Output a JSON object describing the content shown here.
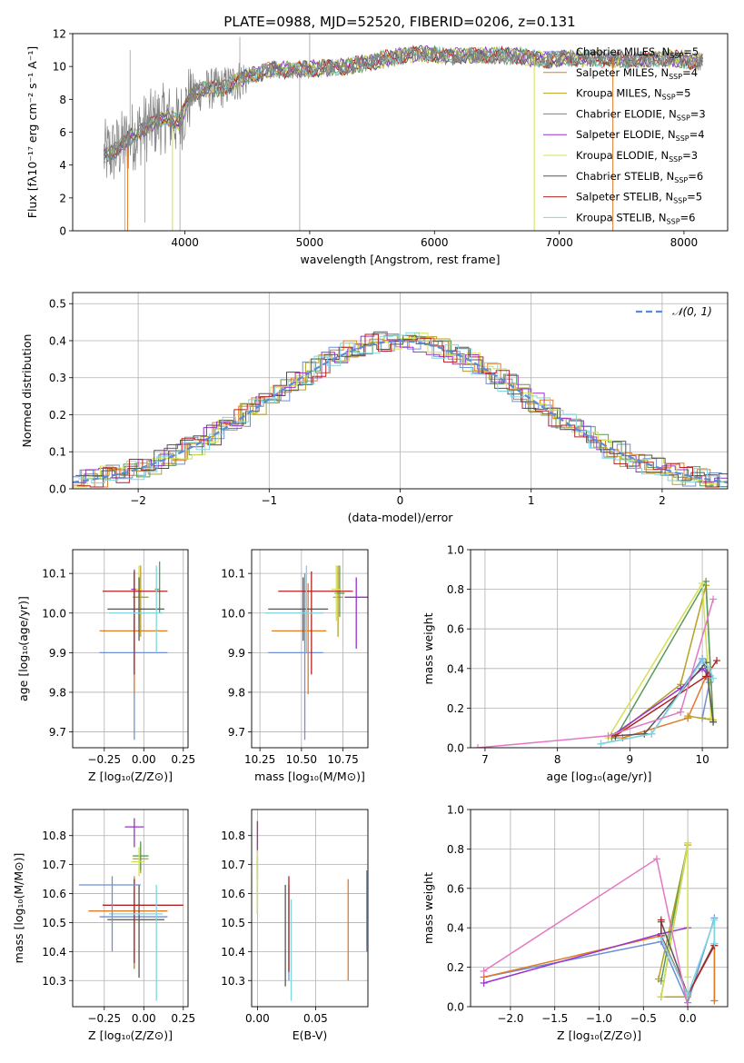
{
  "title": "PLATE=0988, MJD=52520, FIBERID=0206, z=0.131",
  "models": [
    {
      "label": "Chabrier MILES, N",
      "nssp": "=5",
      "color": "#6f8fd6"
    },
    {
      "label": "Salpeter MILES, N",
      "nssp": "=4",
      "color": "#e07b28"
    },
    {
      "label": "Kroupa MILES, N",
      "nssp": "=5",
      "color": "#b8a020"
    },
    {
      "label": "Chabrier ELODIE, N",
      "nssp": "=3",
      "color": "#5a9a5a"
    },
    {
      "label": "Salpeter ELODIE, N",
      "nssp": "=4",
      "color": "#9932cc"
    },
    {
      "label": "Kroupa ELODIE, N",
      "nssp": "=3",
      "color": "#d4e050"
    },
    {
      "label": "Chabrier STELIB, N",
      "nssp": "=6",
      "color": "#555555"
    },
    {
      "label": "Salpeter STELIB, N",
      "nssp": "=5",
      "color": "#b22222"
    },
    {
      "label": "Kroupa STELIB, N",
      "nssp": "=6",
      "color": "#7fd6e0"
    }
  ],
  "ssp_subscript": "SSP",
  "chart_data": [
    {
      "id": "spectrum",
      "type": "line",
      "xlabel": "wavelength [Angstrom, rest frame]",
      "ylabel": "Flux [fλ10⁻¹⁷ erg cm⁻² s⁻¹ A⁻¹]",
      "xlim": [
        3100,
        8350
      ],
      "ylim": [
        0,
        12
      ],
      "xticks": [
        4000,
        5000,
        6000,
        7000,
        8000
      ],
      "yticks": [
        0,
        2,
        4,
        6,
        8,
        10,
        12
      ],
      "continuum": [
        [
          3350,
          4.6
        ],
        [
          3450,
          4.9
        ],
        [
          3550,
          5.6
        ],
        [
          3650,
          6.1
        ],
        [
          3750,
          6.6
        ],
        [
          3850,
          6.9
        ],
        [
          3950,
          6.6
        ],
        [
          4050,
          8.3
        ],
        [
          4150,
          8.6
        ],
        [
          4300,
          8.7
        ],
        [
          4500,
          9.4
        ],
        [
          4700,
          9.8
        ],
        [
          4900,
          9.8
        ],
        [
          5100,
          9.9
        ],
        [
          5300,
          10.0
        ],
        [
          5500,
          10.3
        ],
        [
          5700,
          10.6
        ],
        [
          5900,
          10.8
        ],
        [
          6100,
          10.6
        ],
        [
          6300,
          10.7
        ],
        [
          6500,
          10.7
        ],
        [
          6700,
          10.6
        ],
        [
          6900,
          10.4
        ],
        [
          7100,
          10.5
        ],
        [
          7300,
          10.5
        ],
        [
          7500,
          10.4
        ],
        [
          7700,
          10.4
        ],
        [
          7900,
          10.5
        ],
        [
          8100,
          10.3
        ]
      ]
    },
    {
      "id": "residuals",
      "type": "line",
      "xlabel": "(data-model)/error",
      "ylabel": "Normed distribution",
      "xlim": [
        -2.5,
        2.5
      ],
      "ylim": [
        0,
        0.53
      ],
      "xticks": [
        -2,
        -1,
        0,
        1,
        2
      ],
      "yticks": [
        0.0,
        0.1,
        0.2,
        0.3,
        0.4,
        0.5
      ],
      "legend": "𝒩(0, 1)",
      "gaussian": {
        "mu": 0,
        "sigma": 1
      }
    },
    {
      "id": "age-vs-Z",
      "type": "scatter",
      "xlabel": "Z [log₁₀(Z/Z⊙)]",
      "ylabel": "age  [log₁₀(age/yr)]",
      "xlim": [
        -0.45,
        0.28
      ],
      "ylim": [
        9.66,
        10.16
      ],
      "xticks": [
        -0.25,
        0.0,
        0.25
      ],
      "yticks": [
        9.7,
        9.8,
        9.9,
        10.0,
        10.1
      ],
      "points": [
        {
          "x": -0.06,
          "y": 9.9,
          "xerr": [
            0.22,
            0.21
          ],
          "yerr": [
            0.22,
            0.2
          ]
        },
        {
          "x": -0.06,
          "y": 9.955,
          "xerr": [
            0.22,
            0.21
          ],
          "yerr": [
            0.16,
            0.12
          ]
        },
        {
          "x": -0.02,
          "y": 10.04,
          "xerr": [
            0.05,
            0.05
          ],
          "yerr": [
            0.1,
            0.08
          ]
        },
        {
          "x": 0.1,
          "y": 10.06,
          "xerr": [
            0.03,
            0.0
          ],
          "yerr": [
            0.06,
            0.07
          ]
        },
        {
          "x": -0.06,
          "y": 10.06,
          "xerr": [
            0.02,
            0.02
          ],
          "yerr": [
            0.15,
            0.05
          ]
        },
        {
          "x": -0.03,
          "y": 10.06,
          "xerr": [
            0.02,
            0.02
          ],
          "yerr": [
            0.08,
            0.06
          ]
        },
        {
          "x": -0.03,
          "y": 10.01,
          "xerr": [
            0.2,
            0.16
          ],
          "yerr": [
            0.08,
            0.08
          ]
        },
        {
          "x": -0.06,
          "y": 10.055,
          "xerr": [
            0.2,
            0.21
          ],
          "yerr": [
            0.21,
            0.05
          ]
        },
        {
          "x": 0.08,
          "y": 10.0,
          "xerr": [
            0.3,
            0.04
          ],
          "yerr": [
            0.1,
            0.12
          ]
        }
      ]
    },
    {
      "id": "age-vs-mass",
      "type": "scatter",
      "xlabel": "mass [log₁₀(M/M⊙)]",
      "ylabel": "",
      "xlim": [
        10.2,
        10.9
      ],
      "ylim": [
        9.66,
        10.16
      ],
      "xticks": [
        10.25,
        10.5,
        10.75
      ],
      "yticks": [
        9.7,
        9.8,
        9.9,
        10.0,
        10.1
      ],
      "points": [
        {
          "x": 10.52,
          "y": 9.9,
          "xerr": [
            0.22,
            0.11
          ],
          "yerr": [
            0.22,
            0.2
          ]
        },
        {
          "x": 10.54,
          "y": 9.955,
          "xerr": [
            0.22,
            0.11
          ],
          "yerr": [
            0.16,
            0.12
          ]
        },
        {
          "x": 10.72,
          "y": 10.04,
          "xerr": [
            0.03,
            0.03
          ],
          "yerr": [
            0.1,
            0.08
          ]
        },
        {
          "x": 10.73,
          "y": 10.05,
          "xerr": [
            0.03,
            0.03
          ],
          "yerr": [
            0.06,
            0.07
          ]
        },
        {
          "x": 10.83,
          "y": 10.04,
          "xerr": [
            0.07,
            0.07
          ],
          "yerr": [
            0.13,
            0.05
          ]
        },
        {
          "x": 10.71,
          "y": 10.06,
          "xerr": [
            0.03,
            0.03
          ],
          "yerr": [
            0.08,
            0.06
          ]
        },
        {
          "x": 10.51,
          "y": 10.01,
          "xerr": [
            0.21,
            0.15
          ],
          "yerr": [
            0.08,
            0.08
          ]
        },
        {
          "x": 10.56,
          "y": 10.055,
          "xerr": [
            0.2,
            0.25
          ],
          "yerr": [
            0.21,
            0.05
          ]
        },
        {
          "x": 10.53,
          "y": 10.0,
          "xerr": [
            0.25,
            0.1
          ],
          "yerr": [
            0.1,
            0.12
          ]
        }
      ]
    },
    {
      "id": "weight-vs-age",
      "type": "line",
      "xlabel": "age  [log₁₀(age/yr)]",
      "ylabel": "mass weight",
      "xlim": [
        6.8,
        10.35
      ],
      "ylim": [
        0,
        1.0
      ],
      "xticks": [
        7,
        8,
        9,
        10
      ],
      "yticks": [
        0.0,
        0.2,
        0.4,
        0.6,
        0.8,
        1.0
      ],
      "series": [
        {
          "x": [
            8.6,
            9.3,
            10.0,
            10.1,
            10.0
          ],
          "y": [
            0.02,
            0.07,
            0.45,
            0.33,
            0.15
          ]
        },
        {
          "x": [
            8.9,
            9.8,
            10.1,
            9.8
          ],
          "y": [
            0.05,
            0.15,
            0.4,
            0.15
          ]
        },
        {
          "x": [
            8.75,
            9.7,
            10.05,
            10.15,
            9.8
          ],
          "y": [
            0.05,
            0.32,
            0.82,
            0.14,
            0.16
          ]
        },
        {
          "x": [
            8.8,
            10.05,
            10.15
          ],
          "y": [
            0.05,
            0.84,
            0.13
          ]
        },
        {
          "x": [
            8.75,
            9.7,
            10.0,
            10.1
          ],
          "y": [
            0.06,
            0.3,
            0.4,
            0.36
          ]
        },
        {
          "x": [
            8.7,
            10.0,
            10.12
          ],
          "y": [
            0.05,
            0.83,
            0.15
          ]
        },
        {
          "x": [
            8.8,
            9.2,
            10.05,
            10.15
          ],
          "y": [
            0.06,
            0.07,
            0.43,
            0.13
          ]
        },
        {
          "x": [
            8.8,
            10.05,
            10.2
          ],
          "y": [
            0.06,
            0.36,
            0.44
          ]
        },
        {
          "x": [
            8.6,
            9.3,
            10.0,
            10.1,
            10.15
          ],
          "y": [
            0.02,
            0.07,
            0.44,
            0.4,
            0.35
          ]
        },
        {
          "x": [
            6.9,
            8.7,
            9.7,
            10.15
          ],
          "y": [
            0.0,
            0.06,
            0.18,
            0.75
          ]
        }
      ]
    },
    {
      "id": "mass-vs-Z",
      "type": "scatter",
      "xlabel": "Z [log₁₀(Z/Z⊙)]",
      "ylabel": "mass [log₁₀(M/M⊙)]",
      "xlim": [
        -0.45,
        0.28
      ],
      "ylim": [
        10.21,
        10.89
      ],
      "xticks": [
        -0.25,
        0.0,
        0.25
      ],
      "yticks": [
        10.3,
        10.4,
        10.5,
        10.6,
        10.7,
        10.8
      ],
      "points": [
        {
          "x": -0.06,
          "y": 10.52,
          "xerr": [
            0.22,
            0.21
          ],
          "yerr": [
            0.18,
            0.12
          ]
        },
        {
          "x": -0.06,
          "y": 10.54,
          "xerr": [
            0.29,
            0.21
          ],
          "yerr": [
            0.2,
            0.12
          ]
        },
        {
          "x": -0.02,
          "y": 10.72,
          "xerr": [
            0.05,
            0.05
          ],
          "yerr": [
            0.05,
            0.05
          ]
        },
        {
          "x": -0.02,
          "y": 10.73,
          "xerr": [
            0.05,
            0.05
          ],
          "yerr": [
            0.05,
            0.05
          ]
        },
        {
          "x": -0.06,
          "y": 10.83,
          "xerr": [
            0.06,
            0.06
          ],
          "yerr": [
            0.07,
            0.03
          ]
        },
        {
          "x": -0.03,
          "y": 10.71,
          "xerr": [
            0.05,
            0.03
          ],
          "yerr": [
            0.05,
            0.05
          ]
        },
        {
          "x": -0.03,
          "y": 10.51,
          "xerr": [
            0.2,
            0.16
          ],
          "yerr": [
            0.2,
            0.12
          ]
        },
        {
          "x": -0.06,
          "y": 10.56,
          "xerr": [
            0.2,
            0.31
          ],
          "yerr": [
            0.2,
            0.09
          ]
        },
        {
          "x": 0.08,
          "y": 10.53,
          "xerr": [
            0.3,
            0.04
          ],
          "yerr": [
            0.3,
            0.1
          ]
        },
        {
          "x": -0.2,
          "y": 10.63,
          "xerr": [
            0.21,
            0.18
          ],
          "yerr": [
            0.23,
            0.03
          ]
        }
      ]
    },
    {
      "id": "mass-vs-EBV",
      "type": "scatter",
      "xlabel": "E(B-V)",
      "ylabel": "",
      "xlim": [
        -0.005,
        0.095
      ],
      "ylim": [
        10.21,
        10.89
      ],
      "xticks": [
        0.0,
        0.05
      ],
      "yticks": [
        10.3,
        10.4,
        10.5,
        10.6,
        10.7,
        10.8
      ],
      "points": [
        {
          "x": 0.027,
          "y": 10.45,
          "xerr": [
            0,
            0
          ],
          "yerr": [
            0.15,
            0.18
          ]
        },
        {
          "x": 0.078,
          "y": 10.48,
          "xerr": [
            0,
            0
          ],
          "yerr": [
            0.18,
            0.17
          ]
        },
        {
          "x": 0.0,
          "y": 10.75,
          "xerr": [
            0,
            0
          ],
          "yerr": [
            0.1,
            0.1
          ]
        },
        {
          "x": 0.0,
          "y": 10.68,
          "xerr": [
            0,
            0
          ],
          "yerr": [
            0.15,
            0.05
          ]
        },
        {
          "x": 0.0,
          "y": 10.8,
          "xerr": [
            0,
            0
          ],
          "yerr": [
            0.06,
            0.05
          ]
        },
        {
          "x": 0.0,
          "y": 10.65,
          "xerr": [
            0,
            0
          ],
          "yerr": [
            0.12,
            0.1
          ]
        },
        {
          "x": 0.024,
          "y": 10.45,
          "xerr": [
            0,
            0
          ],
          "yerr": [
            0.17,
            0.18
          ]
        },
        {
          "x": 0.027,
          "y": 10.47,
          "xerr": [
            0,
            0
          ],
          "yerr": [
            0.14,
            0.19
          ]
        },
        {
          "x": 0.029,
          "y": 10.4,
          "xerr": [
            0,
            0
          ],
          "yerr": [
            0.17,
            0.18
          ]
        },
        {
          "x": 0.094,
          "y": 10.54,
          "xerr": [
            0,
            0
          ],
          "yerr": [
            0.14,
            0.14
          ]
        }
      ]
    },
    {
      "id": "weight-vs-Z",
      "type": "line",
      "xlabel": "Z [log₁₀(Z/Z⊙)]",
      "ylabel": "mass weight",
      "xlim": [
        -2.45,
        0.45
      ],
      "ylim": [
        0,
        1.0
      ],
      "xticks": [
        -2.0,
        -1.5,
        -1.0,
        -0.5,
        0.0
      ],
      "yticks": [
        0.0,
        0.2,
        0.4,
        0.6,
        0.8,
        1.0
      ],
      "series": [
        {
          "x": [
            -2.3,
            -0.3,
            0.0,
            0.3,
            0.3
          ],
          "y": [
            0.15,
            0.33,
            0.02,
            0.45,
            0.03
          ]
        },
        {
          "x": [
            -2.3,
            -0.3,
            0.0,
            0.3,
            0.3
          ],
          "y": [
            0.15,
            0.36,
            0.06,
            0.31,
            0.03
          ]
        },
        {
          "x": [
            -0.33,
            0.0,
            -0.3,
            0.0
          ],
          "y": [
            0.14,
            0.82,
            0.05,
            0.05
          ]
        },
        {
          "x": [
            -0.3,
            0.0,
            -0.3
          ],
          "y": [
            0.05,
            0.83,
            0.13
          ]
        },
        {
          "x": [
            -2.3,
            -0.3,
            0.0
          ],
          "y": [
            0.12,
            0.37,
            0.4
          ]
        },
        {
          "x": [
            -0.3,
            0.0,
            0.0
          ],
          "y": [
            0.05,
            0.83,
            0.15
          ]
        },
        {
          "x": [
            -0.3,
            0.0,
            0.3
          ],
          "y": [
            0.43,
            0.06,
            0.32
          ]
        },
        {
          "x": [
            -0.3,
            -0.3,
            0.0,
            0.3
          ],
          "y": [
            0.44,
            0.36,
            0.06,
            0.31
          ]
        },
        {
          "x": [
            -0.3,
            0.0,
            0.3,
            0.3
          ],
          "y": [
            0.35,
            0.06,
            0.44,
            0.32
          ]
        },
        {
          "x": [
            -2.3,
            -0.35,
            0.0
          ],
          "y": [
            0.18,
            0.75,
            0.0
          ]
        }
      ]
    }
  ]
}
